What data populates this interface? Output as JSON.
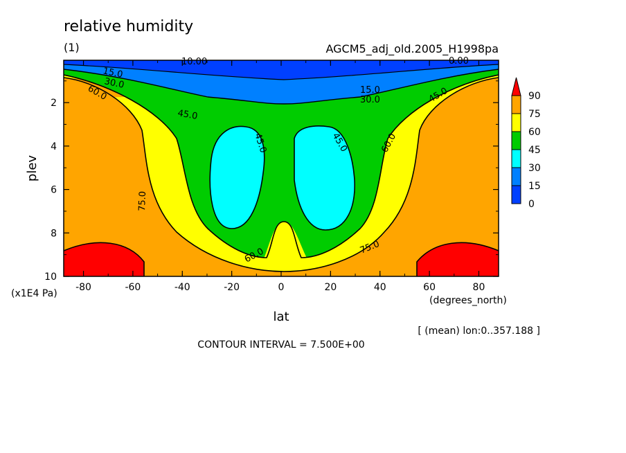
{
  "chart_data": {
    "type": "heatmap",
    "title": "relative humidity",
    "subtitle": "(1)",
    "dataset": "AGCM5_adj_old.2005_H1998pa",
    "xlabel": "lat",
    "ylabel": "plev",
    "x_units": "(degrees_north)",
    "y_units": "(x1E4 Pa)",
    "xlim": [
      -88,
      88
    ],
    "ylim": [
      10,
      0.05
    ],
    "x_ticks": [
      "-80",
      "-60",
      "-40",
      "-20",
      "0",
      "20",
      "40",
      "60",
      "80"
    ],
    "y_ticks": [
      "2",
      "4",
      "6",
      "8",
      "10"
    ],
    "colorbar": {
      "levels": [
        "90",
        "75",
        "60",
        "45",
        "30",
        "15",
        "0"
      ],
      "colors": [
        "#ff0000",
        "#ffa500",
        "#ffff00",
        "#00cc00",
        "#00ffff",
        "#0080ff",
        "#0040ff"
      ]
    },
    "contour_labels": [
      "10.00",
      "15.0",
      "30.0",
      "60.0",
      "45.0",
      "45.0",
      "45.0",
      "15.0",
      "30.0",
      "45.0",
      "60.0",
      "0.00",
      "75.0",
      "60.0",
      "75.0"
    ],
    "mean_note": "[ (mean) lon:0..357.188 ]",
    "contour_interval": "CONTOUR INTERVAL = 7.500E+00"
  }
}
